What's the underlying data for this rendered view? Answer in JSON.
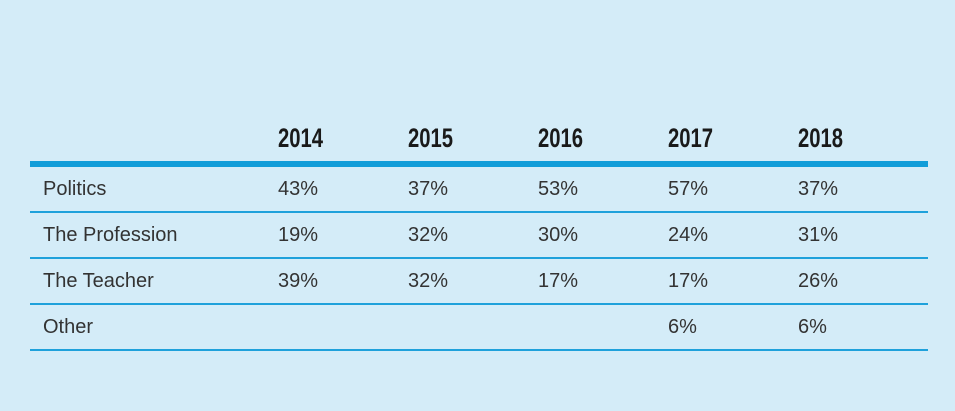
{
  "colors": {
    "background": "#d4ecf8",
    "rule_thick": "#119dd9",
    "rule_thin": "#1fa1db",
    "text": "#333333",
    "header_text": "#1a1a1a"
  },
  "table": {
    "columns": [
      "2014",
      "2015",
      "2016",
      "2017",
      "2018"
    ],
    "rows": [
      {
        "label": "Politics",
        "values": [
          "43%",
          "37%",
          "53%",
          "57%",
          "37%"
        ]
      },
      {
        "label": "The Profession",
        "values": [
          "19%",
          "32%",
          "30%",
          "24%",
          "31%"
        ]
      },
      {
        "label": "The Teacher",
        "values": [
          "39%",
          "32%",
          "17%",
          "17%",
          "26%"
        ]
      },
      {
        "label": "Other",
        "values": [
          "",
          "",
          "",
          "6%",
          "6%"
        ]
      }
    ]
  },
  "chart_data": {
    "type": "table",
    "categories": [
      "2014",
      "2015",
      "2016",
      "2017",
      "2018"
    ],
    "series": [
      {
        "name": "Politics",
        "values": [
          43,
          37,
          53,
          57,
          37
        ]
      },
      {
        "name": "The Profession",
        "values": [
          19,
          32,
          30,
          24,
          31
        ]
      },
      {
        "name": "The Teacher",
        "values": [
          39,
          32,
          17,
          17,
          26
        ]
      },
      {
        "name": "Other",
        "values": [
          null,
          null,
          null,
          6,
          6
        ]
      }
    ],
    "unit": "%",
    "layout": {
      "grid": "horizontal-rules-only",
      "header_rule": "thick",
      "legend": "none"
    }
  }
}
